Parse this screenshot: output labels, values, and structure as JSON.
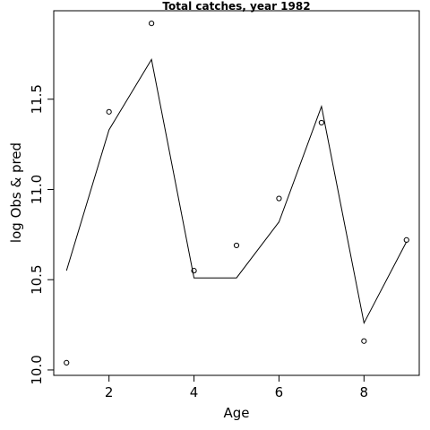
{
  "chart_data": {
    "type": "line",
    "title": "Total catches, year 1982",
    "xlabel": "Age",
    "ylabel": "log Obs & pred",
    "xlim": [
      0.7,
      9.3
    ],
    "ylim": [
      9.97,
      11.99
    ],
    "x_ticks": [
      2,
      4,
      6,
      8
    ],
    "y_ticks": [
      10.0,
      10.5,
      11.0,
      11.5
    ],
    "x_tick_labels": [
      "2",
      "4",
      "6",
      "8"
    ],
    "y_tick_labels": [
      "10.0",
      "10.5",
      "11.0",
      "11.5"
    ],
    "grid": false,
    "legend": "none",
    "series": [
      {
        "kind": "points",
        "x": [
          1,
          2,
          3,
          4,
          5,
          6,
          7,
          8,
          9
        ],
        "y": [
          10.04,
          11.43,
          11.92,
          10.55,
          10.69,
          10.95,
          11.37,
          10.16,
          10.72
        ]
      },
      {
        "kind": "line",
        "x": [
          1,
          2,
          3,
          4,
          5,
          6,
          7,
          8,
          9
        ],
        "y": [
          10.55,
          11.33,
          11.72,
          10.51,
          10.51,
          10.82,
          11.46,
          10.26,
          10.71
        ]
      }
    ]
  }
}
